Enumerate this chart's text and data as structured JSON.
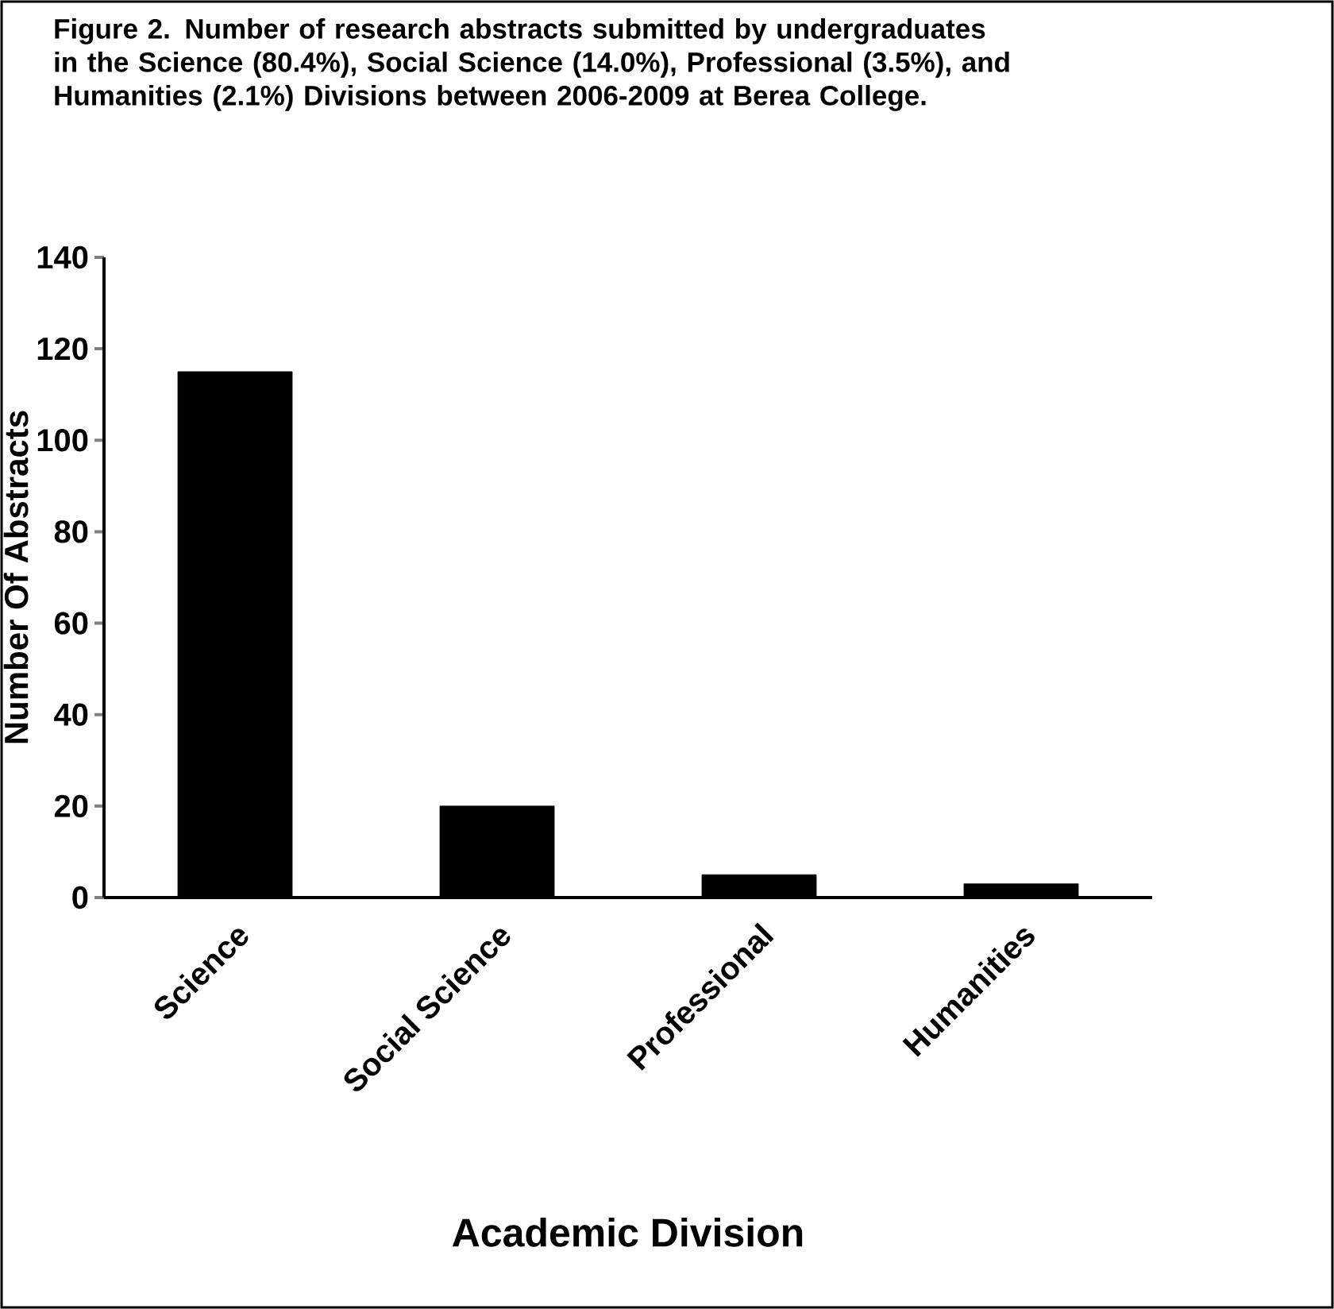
{
  "chart_data": {
    "type": "bar",
    "title": "Figure 2. Number of research abstracts submitted by undergraduates in the Science (80.4%), Social Science (14.0%), Professional (3.5%), and Humanities (2.1%) Divisions between 2006-2009 at Berea College.",
    "xlabel": "Academic Division",
    "ylabel": "Number Of Abstracts",
    "categories": [
      "Science",
      "Social Science",
      "Professional",
      "Humanities"
    ],
    "values": [
      115,
      20,
      5,
      3
    ],
    "color": "#000000",
    "ylim": [
      0,
      140
    ],
    "yticks": [
      0,
      20,
      40,
      60,
      80,
      100,
      120,
      140
    ]
  }
}
